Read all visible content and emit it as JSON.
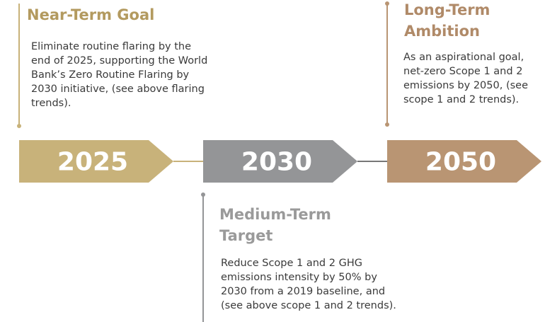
{
  "milestones": [
    {
      "year": "2025",
      "title_lines": [
        "Near-Term Goal"
      ],
      "description_lines": [
        "Eliminate routine flaring by the",
        "end of 2025, supporting the World",
        "Bank’s Zero Routine Flaring by",
        "2030 initiative, (see above flaring",
        "trends)."
      ]
    },
    {
      "year": "2030",
      "title_lines": [
        "Medium-Term",
        "Target"
      ],
      "description_lines": [
        "Reduce Scope 1 and 2 GHG",
        "emissions intensity by 50% by",
        "2030 from a 2019 baseline, and",
        "(see above scope 1 and 2 trends)."
      ]
    },
    {
      "year": "2050",
      "title_lines": [
        "Long-Term",
        "Ambition"
      ],
      "description_lines": [
        "As an aspirational goal,",
        "net-zero Scope 1 and 2",
        "emissions by 2050, (see",
        "scope 1 and 2 trends)."
      ]
    }
  ]
}
